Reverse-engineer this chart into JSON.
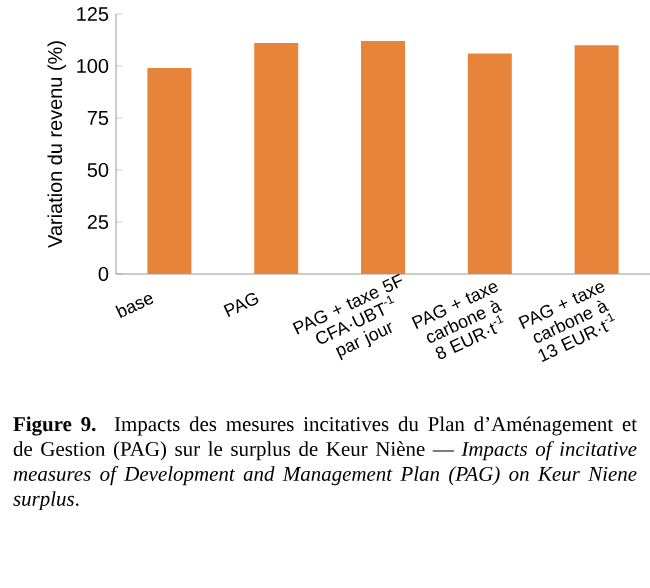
{
  "chart_data": {
    "type": "bar",
    "ylabel": "Variation du revenu (%)",
    "categories": [
      "base",
      "PAG",
      "PAG + taxe 5F CFA·UBT$^{-1}$ par jour",
      "PAG + taxe carbone à 8 EUR·t$^{-1}$",
      "PAG + taxe carbone à 13 EUR·t$^{-1}$"
    ],
    "values": [
      99,
      111,
      112,
      106,
      110
    ],
    "color": "#e8843a",
    "ylim": [
      0,
      125
    ],
    "yticks": [
      0,
      25,
      50,
      75,
      100,
      125
    ],
    "grid": false,
    "annotations": [
      "**Figure 9.** Impacts des mesures incitatives du Plan d’Aménagement et de Gestion (PAG) sur le surplus de Keur Niène — *Impacts of incitative measures of Development and Management Plan (PAG) on Keur Niene surplus*."
    ]
  }
}
